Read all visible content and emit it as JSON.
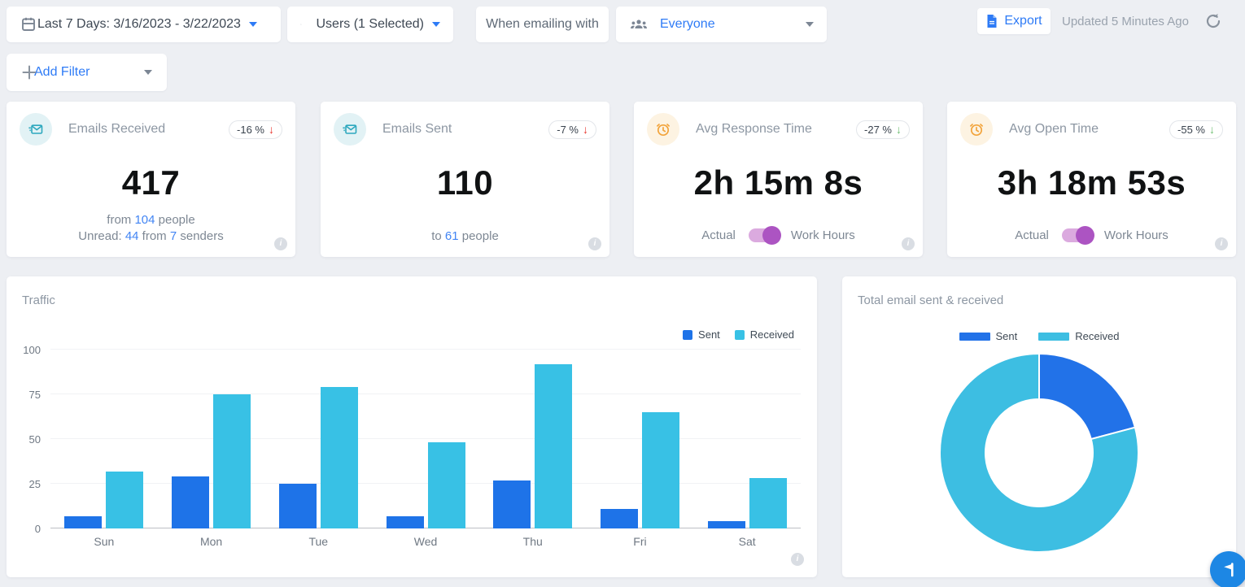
{
  "toolbar": {
    "date_filter": {
      "label": "Last 7 Days: 3/16/2023 - 3/22/2023"
    },
    "users_filter": {
      "label": "Users (1 Selected)"
    },
    "emailing_with": {
      "label": "When emailing with"
    },
    "audience_filter": {
      "label": "Everyone"
    },
    "export": {
      "label": "Export"
    },
    "updated": {
      "label": "Updated 5 Minutes Ago"
    }
  },
  "filter_bar": {
    "add_filter": {
      "label": "Add Filter"
    }
  },
  "colors": {
    "accent_blue": "#2E7BF6",
    "link_blue": "#4285F4",
    "bar_sent": "#1E73E8",
    "bar_received": "#38C1E5",
    "donut_sent": "#2272E8",
    "donut_received": "#3DBEE2",
    "toggle_track": "#DBAADF",
    "toggle_knob": "#AC54C2",
    "badge_red": "#E8352E",
    "badge_green": "#6FBF73"
  },
  "cards": [
    {
      "title": "Emails Received",
      "icon": "mail-icon",
      "badge": {
        "text": "-16 %",
        "arrow": "↓",
        "arrow_color": "#E8352E"
      },
      "value": "417",
      "line1": {
        "a": "from ",
        "n1": "104",
        "b": " people"
      },
      "line2": {
        "a": "Unread: ",
        "n1": "44",
        "b": " from ",
        "n2": "7",
        "c": " senders"
      }
    },
    {
      "title": "Emails Sent",
      "icon": "mail-icon",
      "badge": {
        "text": "-7 %",
        "arrow": "↓",
        "arrow_color": "#E8352E"
      },
      "value": "110",
      "line2": {
        "a": "to ",
        "n1": "61",
        "b": " people"
      }
    },
    {
      "title": "Avg Response Time",
      "icon": "alarm-clock-icon",
      "badge": {
        "text": "-27 %",
        "arrow": "↓",
        "arrow_color": "#6FBF73"
      },
      "value": "2h 15m 8s",
      "toggle": {
        "left": "Actual",
        "right": "Work Hours",
        "state": "right"
      }
    },
    {
      "title": "Avg Open Time",
      "icon": "alarm-clock-icon",
      "badge": {
        "text": "-55 %",
        "arrow": "↓",
        "arrow_color": "#6FBF73"
      },
      "value": "3h 18m 53s",
      "toggle": {
        "left": "Actual",
        "right": "Work Hours",
        "state": "right"
      }
    }
  ],
  "chart_data": [
    {
      "type": "bar",
      "title": "Traffic",
      "categories": [
        "Sun",
        "Mon",
        "Tue",
        "Wed",
        "Thu",
        "Fri",
        "Sat"
      ],
      "series": [
        {
          "name": "Sent",
          "color": "#1E73E8",
          "values": [
            7,
            29,
            25,
            7,
            27,
            11,
            4
          ]
        },
        {
          "name": "Received",
          "color": "#38C1E5",
          "values": [
            32,
            75,
            79,
            48,
            92,
            65,
            28
          ]
        }
      ],
      "xlabel": "",
      "ylabel": "",
      "ylim": [
        0,
        100
      ],
      "yticks": [
        0,
        25,
        50,
        75,
        100
      ],
      "grid": true,
      "legend_position": "top-right"
    },
    {
      "type": "pie",
      "donut": true,
      "title": "Total email sent & received",
      "slices": [
        {
          "name": "Sent",
          "value": 110,
          "color": "#2272E8"
        },
        {
          "name": "Received",
          "value": 417,
          "color": "#3DBEE2"
        }
      ],
      "start_angle_deg": 0,
      "legend_position": "top-center"
    }
  ]
}
